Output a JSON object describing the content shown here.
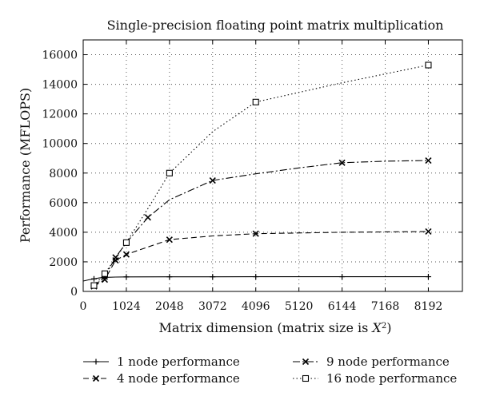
{
  "chart_data": {
    "type": "line",
    "title": "Single-precision floating point matrix multiplication",
    "xlabel_prefix": "Matrix dimension (matrix size is ",
    "xlabel_var": "X",
    "xlabel_sup": "2",
    "xlabel_suffix": ")",
    "ylabel": "Performance (MFLOPS)",
    "xlim": [
      0,
      9000
    ],
    "ylim": [
      0,
      17000
    ],
    "x_ticks": [
      0,
      1024,
      2048,
      3072,
      4096,
      5120,
      6144,
      7168,
      8192
    ],
    "y_ticks": [
      0,
      2000,
      4000,
      6000,
      8000,
      10000,
      12000,
      14000,
      16000
    ],
    "grid": true,
    "legend_position": "bottom",
    "series": [
      {
        "name": "1 node performance",
        "line_style": "solid",
        "marker": "plus",
        "marker_points": [
          [
            256,
            850
          ],
          [
            512,
            950
          ],
          [
            1024,
            980
          ],
          [
            2048,
            990
          ],
          [
            3072,
            990
          ],
          [
            4096,
            995
          ],
          [
            6144,
            995
          ],
          [
            8192,
            995
          ]
        ],
        "curve": [
          [
            0,
            700
          ],
          [
            128,
            780
          ],
          [
            256,
            850
          ],
          [
            384,
            910
          ],
          [
            512,
            950
          ],
          [
            768,
            970
          ],
          [
            1024,
            980
          ],
          [
            2048,
            990
          ],
          [
            3072,
            990
          ],
          [
            4096,
            995
          ],
          [
            6144,
            995
          ],
          [
            8192,
            995
          ]
        ]
      },
      {
        "name": "4 node performance",
        "line_style": "dashed",
        "marker": "x",
        "marker_points": [
          [
            256,
            350
          ],
          [
            512,
            800
          ],
          [
            768,
            2100
          ],
          [
            1024,
            2500
          ],
          [
            2048,
            3500
          ],
          [
            4096,
            3900
          ],
          [
            8192,
            4050
          ]
        ],
        "curve": [
          [
            256,
            350
          ],
          [
            512,
            800
          ],
          [
            768,
            2100
          ],
          [
            1024,
            2500
          ],
          [
            1536,
            3000
          ],
          [
            2048,
            3500
          ],
          [
            3072,
            3750
          ],
          [
            4096,
            3900
          ],
          [
            6144,
            4000
          ],
          [
            8192,
            4050
          ]
        ]
      },
      {
        "name": "9 node performance",
        "line_style": "dashdot",
        "marker": "x",
        "marker_points": [
          [
            256,
            350
          ],
          [
            512,
            1000
          ],
          [
            768,
            2300
          ],
          [
            1536,
            5000
          ],
          [
            3072,
            7500
          ],
          [
            6144,
            8700
          ],
          [
            8192,
            8850
          ]
        ],
        "curve": [
          [
            256,
            350
          ],
          [
            512,
            1000
          ],
          [
            768,
            2300
          ],
          [
            1024,
            3300
          ],
          [
            1536,
            5000
          ],
          [
            2048,
            6200
          ],
          [
            3072,
            7500
          ],
          [
            4096,
            7950
          ],
          [
            5120,
            8350
          ],
          [
            6144,
            8700
          ],
          [
            7168,
            8800
          ],
          [
            8192,
            8850
          ]
        ]
      },
      {
        "name": "16 node performance",
        "line_style": "dotted",
        "marker": "square",
        "marker_points": [
          [
            256,
            400
          ],
          [
            512,
            1200
          ],
          [
            1024,
            3300
          ],
          [
            2048,
            8000
          ],
          [
            4096,
            12800
          ],
          [
            8192,
            15300
          ]
        ],
        "curve": [
          [
            256,
            400
          ],
          [
            512,
            1200
          ],
          [
            1024,
            3300
          ],
          [
            1536,
            5600
          ],
          [
            2048,
            8000
          ],
          [
            3072,
            10800
          ],
          [
            4096,
            12800
          ],
          [
            6144,
            14100
          ],
          [
            8192,
            15300
          ]
        ]
      }
    ]
  }
}
